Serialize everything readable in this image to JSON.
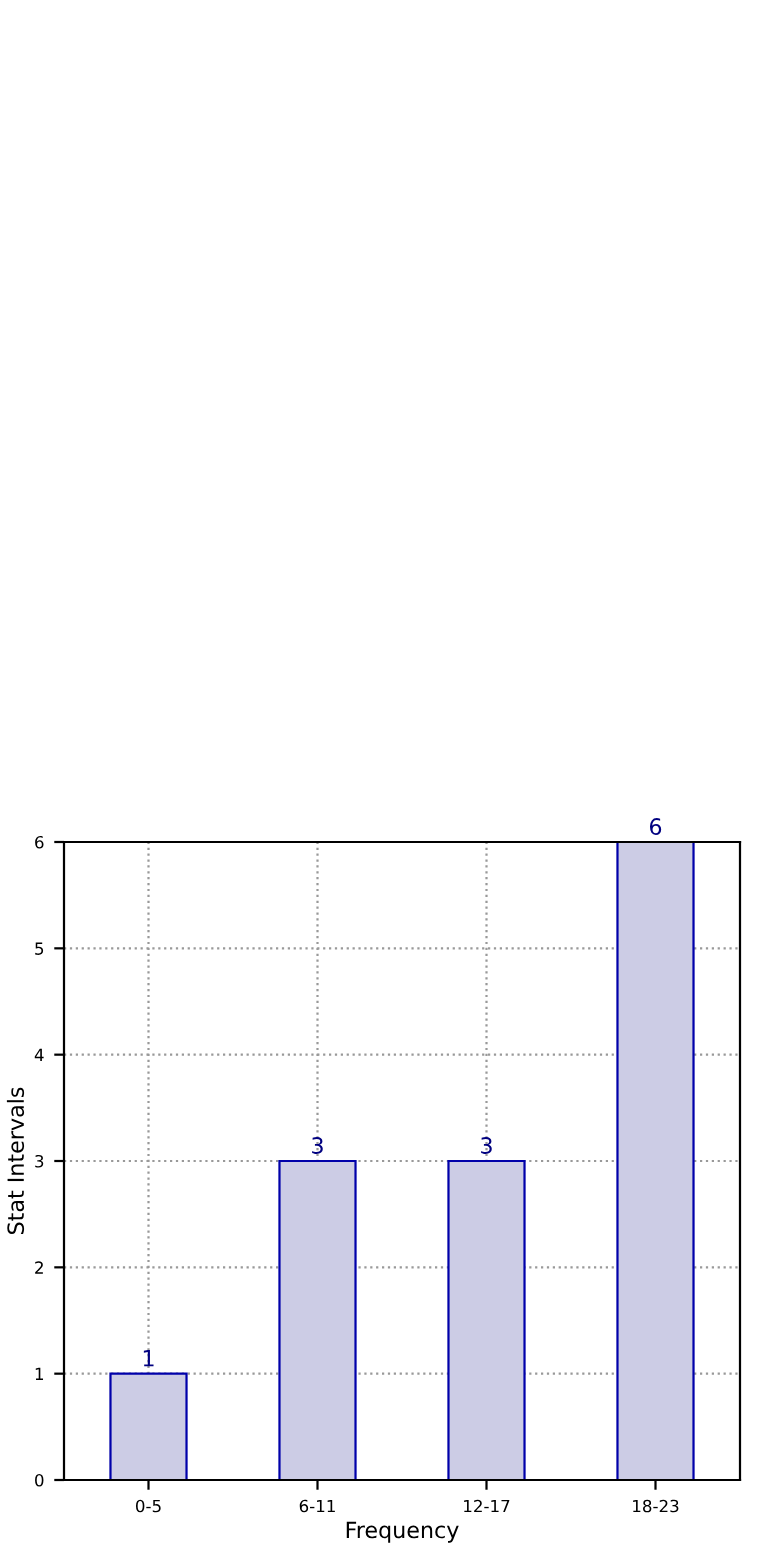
{
  "chart_data": {
    "type": "bar",
    "xlabel": "Frequency",
    "ylabel": "Stat Intervals",
    "categories": [
      "0-5",
      "6-11",
      "12-17",
      "18-23"
    ],
    "series": [
      {
        "color": "#ccccE5",
        "values": [
          1,
          3,
          3,
          6
        ]
      }
    ],
    "ylim": [
      0,
      6
    ],
    "yticks": [
      0,
      1,
      2,
      3,
      4,
      5,
      6
    ],
    "grid": true,
    "data_labels": true
  }
}
